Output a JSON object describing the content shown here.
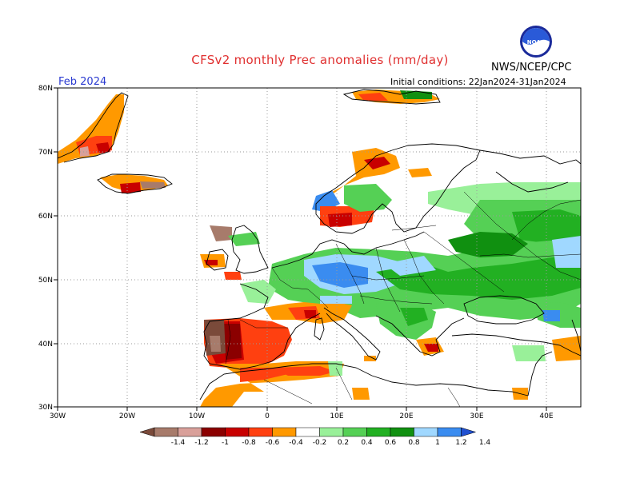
{
  "header": {
    "title": "CFSv2 monthly Prec anomalies (mm/day)",
    "org": "NWS/NCEP/CPC",
    "month": "Feb 2024",
    "initial_conditions": "Initial conditions: 22Jan2024-31Jan2024",
    "logo_text": "NOAA"
  },
  "axes": {
    "lon_labels": [
      "30W",
      "20W",
      "10W",
      "0",
      "10E",
      "20E",
      "30E",
      "40E"
    ],
    "lat_labels": [
      "30N",
      "40N",
      "50N",
      "60N",
      "70N",
      "80N"
    ]
  },
  "colorbar": {
    "labels": [
      "-1.4",
      "-1.2",
      "-1",
      "-0.8",
      "-0.6",
      "-0.4",
      "-0.2",
      "0.2",
      "0.4",
      "0.6",
      "0.8",
      "1",
      "1.2",
      "1.4"
    ],
    "colors": [
      "#7a4a3a",
      "#a77b6b",
      "#d9a09a",
      "#8b0000",
      "#c80000",
      "#ff4010",
      "#ff9900",
      "#ffffff",
      "#99f099",
      "#55d055",
      "#22b022",
      "#109010",
      "#a0d8ff",
      "#3a8cf0",
      "#2050d0"
    ]
  },
  "map_data": {
    "lon_range": [
      -30,
      45
    ],
    "lat_range": [
      30,
      80
    ],
    "anomaly_regions": [
      {
        "name": "Iberia dry",
        "value": -1.0
      },
      {
        "name": "NW Africa dry",
        "value": -0.5
      },
      {
        "name": "Central Europe wet",
        "value": 1.2
      },
      {
        "name": "Eastern Europe wet",
        "value": 0.7
      },
      {
        "name": "W Russia wet",
        "value": 1.1
      },
      {
        "name": "Greenland dry",
        "value": -0.6
      },
      {
        "name": "Iceland dry",
        "value": -0.9
      }
    ]
  }
}
